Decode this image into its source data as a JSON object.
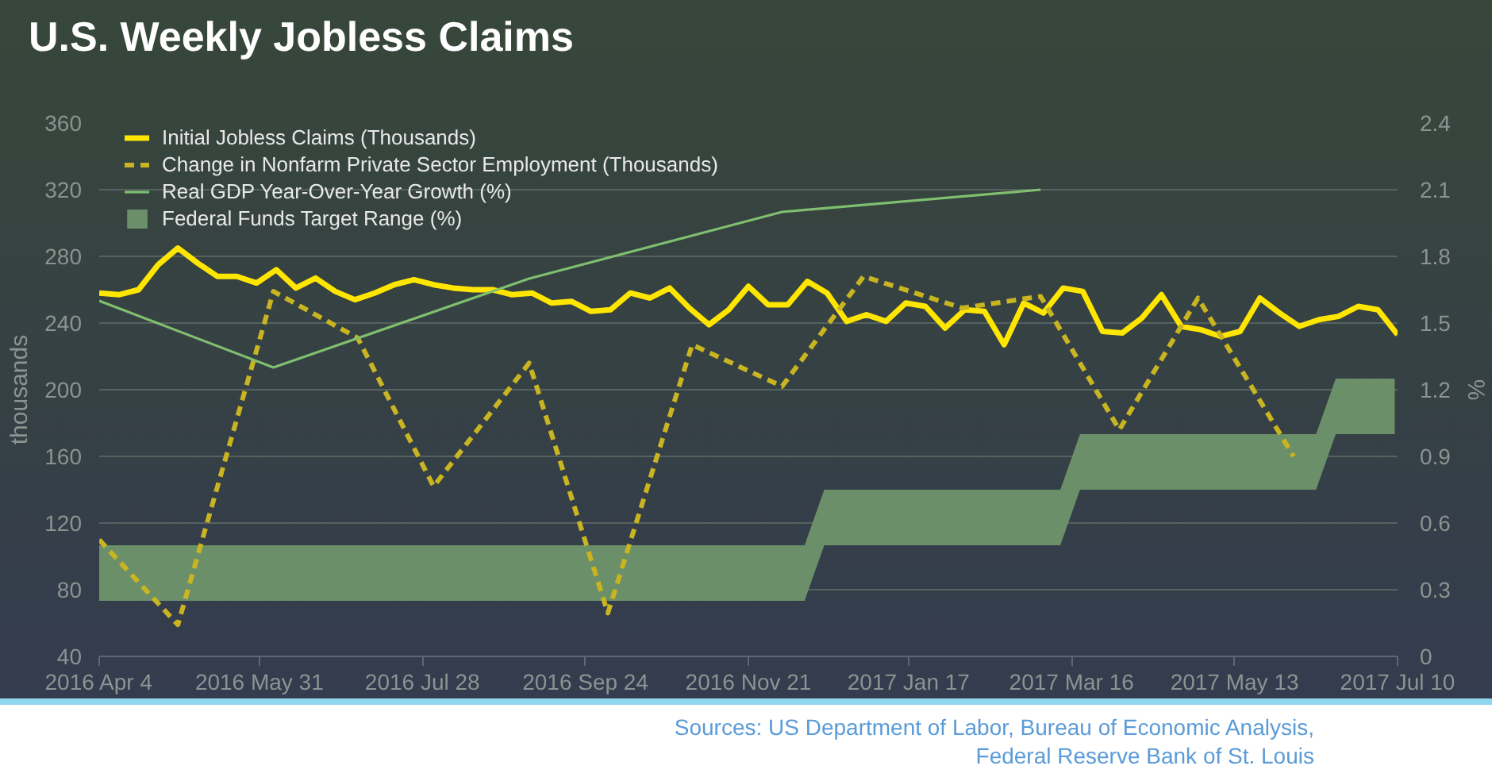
{
  "chart_data": {
    "type": "line",
    "title": "U.S. Weekly Jobless Claims",
    "ylabel": "thousands",
    "y2label": "%",
    "xlim": [
      "2016-04-04",
      "2017-07-10"
    ],
    "xticks": [
      {
        "value": "2016-04-04",
        "label": "2016 Apr 4"
      },
      {
        "value": "2016-05-31",
        "label": "2016 May 31"
      },
      {
        "value": "2016-07-28",
        "label": "2016 Jul 28"
      },
      {
        "value": "2016-09-24",
        "label": "2016 Sep 24"
      },
      {
        "value": "2016-11-21",
        "label": "2016 Nov 21"
      },
      {
        "value": "2017-01-17",
        "label": "2017 Jan 17"
      },
      {
        "value": "2017-03-16",
        "label": "2017 Mar 16"
      },
      {
        "value": "2017-05-13",
        "label": "2017 May 13"
      },
      {
        "value": "2017-07-10",
        "label": "2017 Jul 10"
      }
    ],
    "ylim": [
      40,
      360
    ],
    "yticks": [
      40,
      80,
      120,
      160,
      200,
      240,
      280,
      320,
      360
    ],
    "y2lim": [
      0,
      2.4
    ],
    "y2ticks": [
      0,
      0.3,
      0.6,
      0.9,
      1.2,
      1.5,
      1.8,
      2.1,
      2.4
    ],
    "grid": "y",
    "legend": "top left",
    "series": [
      {
        "name": "Initial Jobless Claims (Thousands)",
        "type": "line",
        "color": "#ffe600",
        "x": [
          "2016-04-04",
          "2016-04-11",
          "2016-04-18",
          "2016-04-25",
          "2016-05-02",
          "2016-05-09",
          "2016-05-16",
          "2016-05-23",
          "2016-05-30",
          "2016-06-06",
          "2016-06-13",
          "2016-06-20",
          "2016-06-27",
          "2016-07-04",
          "2016-07-11",
          "2016-07-18",
          "2016-07-25",
          "2016-08-01",
          "2016-08-08",
          "2016-08-15",
          "2016-08-22",
          "2016-08-29",
          "2016-09-05",
          "2016-09-12",
          "2016-09-19",
          "2016-09-26",
          "2016-10-03",
          "2016-10-10",
          "2016-10-17",
          "2016-10-24",
          "2016-10-31",
          "2016-11-07",
          "2016-11-14",
          "2016-11-21",
          "2016-11-28",
          "2016-12-05",
          "2016-12-12",
          "2016-12-19",
          "2016-12-26",
          "2017-01-02",
          "2017-01-09",
          "2017-01-16",
          "2017-01-23",
          "2017-01-30",
          "2017-02-06",
          "2017-02-13",
          "2017-02-20",
          "2017-02-27",
          "2017-03-06",
          "2017-03-13",
          "2017-03-20",
          "2017-03-27",
          "2017-04-03",
          "2017-04-10",
          "2017-04-17",
          "2017-04-24",
          "2017-05-01",
          "2017-05-08",
          "2017-05-15",
          "2017-05-22",
          "2017-05-29",
          "2017-06-05",
          "2017-06-12",
          "2017-06-19",
          "2017-06-26",
          "2017-07-03",
          "2017-07-10"
        ],
        "values": [
          258,
          257,
          260,
          275,
          285,
          276,
          268,
          268,
          264,
          272,
          261,
          267,
          259,
          254,
          258,
          263,
          266,
          263,
          261,
          260,
          260,
          257,
          258,
          252,
          253,
          247,
          248,
          258,
          255,
          261,
          249,
          239,
          248,
          262,
          251,
          251,
          265,
          258,
          241,
          245,
          241,
          252,
          250,
          237,
          248,
          247,
          227,
          252,
          246,
          261,
          259,
          235,
          234,
          243,
          257,
          238,
          236,
          232,
          235,
          255,
          246,
          238,
          242,
          244,
          250,
          248,
          233
        ]
      },
      {
        "name": "Change in Nonfarm Private Sector Employment (Thousands)",
        "type": "line",
        "line_style": "dashed",
        "color": "#c9b422",
        "x": [
          "2016-04-04",
          "2016-05-02",
          "2016-06-05",
          "2016-07-05",
          "2016-08-01",
          "2016-09-04",
          "2016-10-02",
          "2016-11-01",
          "2016-12-03",
          "2017-01-01",
          "2017-02-05",
          "2017-03-05",
          "2017-04-02",
          "2017-04-30",
          "2017-06-03"
        ],
        "values": [
          110,
          59,
          259,
          231,
          142,
          216,
          66,
          227,
          202,
          268,
          249,
          256,
          176,
          255,
          160
        ]
      },
      {
        "name": "Real GDP Year-Over-Year Growth (%)",
        "type": "line",
        "axis": "y2",
        "color": "#7fbf6f",
        "x": [
          "2016-04-04",
          "2016-06-05",
          "2016-09-04",
          "2016-12-03",
          "2017-03-05"
        ],
        "values": [
          1.6,
          1.3,
          1.7,
          2.0,
          2.1
        ]
      },
      {
        "name": "Federal Funds Target Range (%)",
        "type": "area",
        "axis": "y2",
        "color": "#6b8f69",
        "x": [
          "2016-04-04",
          "2016-12-11",
          "2016-12-18",
          "2017-03-12",
          "2017-03-19",
          "2017-06-11",
          "2017-06-18",
          "2017-07-09"
        ],
        "values": [
          null,
          null,
          null,
          null,
          null,
          null,
          null,
          null
        ],
        "lower": [
          0.25,
          0.25,
          0.5,
          0.5,
          0.75,
          0.75,
          1.0,
          1.0
        ],
        "upper": [
          0.5,
          0.5,
          0.75,
          0.75,
          1.0,
          1.0,
          1.25,
          1.25
        ]
      }
    ],
    "annotations": [
      "Sources: US Department of Labor, Bureau of Economic Analysis, Federal Reserve Bank of St. Louis"
    ]
  }
}
